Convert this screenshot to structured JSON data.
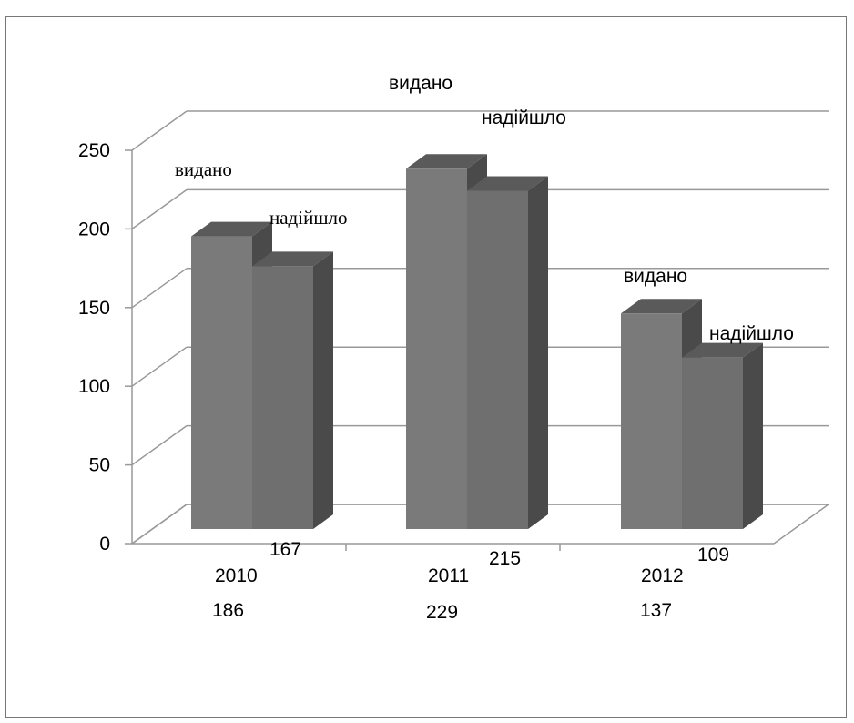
{
  "chart_data": {
    "type": "bar",
    "three_d": true,
    "categories": [
      "2010",
      "2011",
      "2012"
    ],
    "series": [
      {
        "name": "видано",
        "values": [
          186,
          229,
          137
        ],
        "color": "#7a7a7a"
      },
      {
        "name": "надійшло",
        "values": [
          167,
          215,
          109
        ],
        "color": "#6f6f6f"
      }
    ],
    "ylim": [
      0,
      250
    ],
    "yticks": [
      "0",
      "50",
      "100",
      "150",
      "200",
      "250"
    ],
    "grid": true,
    "legend": "none",
    "title": "",
    "xlabel": "",
    "ylabel": "",
    "value_labels": [
      [
        "186",
        "229",
        "137"
      ],
      [
        "167",
        "215",
        "109"
      ]
    ],
    "series_labels": [
      [
        "видано",
        "видано",
        "видано"
      ],
      [
        "надійшло",
        "надійшло",
        "надійшло"
      ]
    ]
  }
}
